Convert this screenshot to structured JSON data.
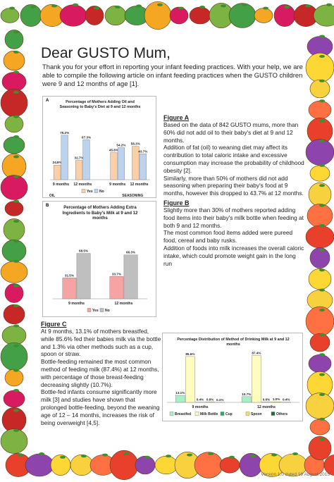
{
  "title": "Dear GUSTO Mum,",
  "intro": "Thank you for your effort in reporting your infant feeding practices. With your help, we are able to compile the following article on infant feeding practices when the GUSTO children were 9 and 12 months of age [1].",
  "figure_a": {
    "heading": "Figure A",
    "paragraphs": [
      "Based on the data of 842 GUSTO mums, more than 60% did not add oil to their baby's diet at 9 and 12 months.",
      "Addition of fat (oil) to weaning diet may affect its contribution to total caloric intake and excessive consumption may increase the probability of childhood obesity [2].",
      "Similarly, more than 50% of mothers did not add seasoning when preparing their baby's food at 9 months, however this dropped to 43.7% at 12 months."
    ]
  },
  "figure_b": {
    "heading": "Figure B",
    "paragraphs": [
      "Slightly more than 30% of mothers reported adding food items into their baby's milk bottle when feeding at both 9 and 12 months.",
      "The most common food items added were pureed food, cereal and baby rusks.",
      "Addition of foods into milk increases the overall caloric intake, which could promote weight gain in the long run"
    ]
  },
  "figure_c": {
    "heading": "Figure C",
    "paragraphs": [
      "At 9 months, 13.1% of mothers breastfed, while 85.6% fed their babies milk via the bottle and 1.3% via other methods such as a cup, spoon or straw.",
      "Bottle-feeding remained the most common method of feeding milk (87.4%) at 12 months, with percentage of those breast-feeding decreasing slightly (10.7%).",
      "Bottle-fed infants consume significantly more milk [3] and studies have shown that prolonged bottle-feeding, beyond the weaning age of 12 – 14 months, increases the risk of being overweight [4,5]."
    ]
  },
  "chart_data": [
    {
      "type": "bar",
      "panel_label": "A",
      "title": "Percentage of Mothers Adding Oil and Seasoning to Baby's Diet at 9 and 12 months",
      "categories": [
        "9 months",
        "12 months",
        "9 months",
        "12 months"
      ],
      "group_labels": [
        "OIL",
        "SEASONING"
      ],
      "series": [
        {
          "name": "Yes",
          "color": "#fbd0a8",
          "values": [
            24.8,
            32.7,
            45.8,
            56.3
          ],
          "value_labels": [
            "24.8%",
            "32.7%",
            "45.8%",
            "56.3%"
          ]
        },
        {
          "name": "No",
          "color": "#bcd3ef",
          "values": [
            75.2,
            67.3,
            54.2,
            43.7
          ],
          "value_labels": [
            "75.2%",
            "67.3%",
            "54.2%",
            "43.7%"
          ]
        }
      ]
    },
    {
      "type": "bar",
      "panel_label": "B",
      "title": "Percentage of Mothers Adding Extra Ingredients to Baby's Milk at 9 and 12 months",
      "categories": [
        "9 months",
        "12 months"
      ],
      "series": [
        {
          "name": "Yes",
          "color": "#f6a3a3",
          "values": [
            31.5,
            33.7
          ],
          "value_labels": [
            "31.5%",
            "33.7%"
          ]
        },
        {
          "name": "No",
          "color": "#bfbfbf",
          "values": [
            68.5,
            66.3
          ],
          "value_labels": [
            "68.5%",
            "66.3%"
          ]
        }
      ]
    },
    {
      "type": "bar",
      "title": "Percentage Distribution of Method of Drinking Milk at 9 and 12 months",
      "categories": [
        "9 months",
        "12 months"
      ],
      "series": [
        {
          "name": "Breastfed",
          "color": "#a6f0c6",
          "values": [
            13.1,
            10.7
          ],
          "value_labels": [
            "13.1%",
            "10.7%"
          ]
        },
        {
          "name": "Milk Bottle",
          "color": "#fffcc0",
          "values": [
            85.6,
            87.4
          ],
          "value_labels": [
            "85.6%",
            "87.4%"
          ]
        },
        {
          "name": "Cup",
          "color": "#2aa86a",
          "values": [
            0.4,
            0.6
          ],
          "value_labels": [
            "0.4%",
            "0.6%"
          ]
        },
        {
          "name": "Spoon",
          "color": "#f2e25a",
          "values": [
            0.8,
            1.0
          ],
          "value_labels": [
            "0.8%",
            "1.0%"
          ]
        },
        {
          "name": "Others",
          "color": "#1c6b3a",
          "values": [
            0.1,
            0.4
          ],
          "value_labels": [
            "0.1%",
            "0.4%"
          ]
        }
      ]
    }
  ],
  "footer": "Version 1.0 dated 19 August 2015"
}
